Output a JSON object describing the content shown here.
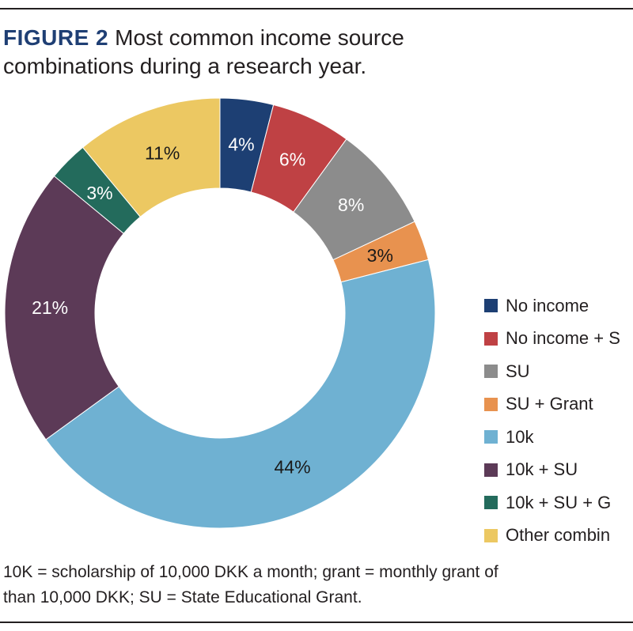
{
  "figure": {
    "label": "FIGURE 2",
    "title_line1": "Most common income source",
    "title_line2": "combinations during a research year."
  },
  "chart_data": {
    "type": "pie",
    "donut": true,
    "categories": [
      "No income",
      "No income + S",
      "SU",
      "SU + Grant",
      "10k",
      "10k + SU",
      "10k + SU + G",
      "Other combin"
    ],
    "values": [
      4,
      6,
      8,
      3,
      44,
      21,
      3,
      11
    ],
    "value_labels": [
      "4%",
      "6%",
      "8%",
      "3%",
      "44%",
      "21%",
      "3%",
      "11%"
    ],
    "colors": [
      "#1d3f73",
      "#bf4144",
      "#8c8c8c",
      "#e8924f",
      "#6fb1d2",
      "#5c3a57",
      "#236b5c",
      "#ecc862"
    ],
    "label_colors": [
      "#ffffff",
      "#ffffff",
      "#ffffff",
      "#1a1a1a",
      "#1a1a1a",
      "#ffffff",
      "#ffffff",
      "#1a1a1a"
    ],
    "legend_position": "right",
    "start": "top",
    "direction": "clockwise"
  },
  "footnote": {
    "line1": "10K = scholarship of 10,000 DKK a month; grant = monthly grant of",
    "line2": "than 10,000 DKK; SU = State Educational Grant."
  }
}
